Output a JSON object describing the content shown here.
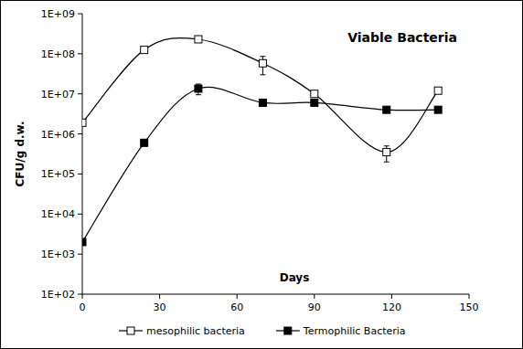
{
  "chart_data": {
    "type": "line",
    "title": "Viable Bacteria",
    "x_label": "Days",
    "y_label": "CFU/g d.w.",
    "log": "y",
    "grid": false,
    "legend": "bottom",
    "xlim": [
      0,
      150
    ],
    "xticks": [
      0,
      30,
      60,
      90,
      120,
      150
    ],
    "ylim": [
      100,
      1000000000
    ],
    "yticks": [
      {
        "value": 100,
        "label": "1E+02"
      },
      {
        "value": 1000,
        "label": "1E+03"
      },
      {
        "value": 10000,
        "label": "1E+04"
      },
      {
        "value": 100000,
        "label": "1E+05"
      },
      {
        "value": 1000000,
        "label": "1E+06"
      },
      {
        "value": 10000000,
        "label": "1E+07"
      },
      {
        "value": 100000000,
        "label": "1E+08"
      },
      {
        "value": 1000000000,
        "label": "1E+09"
      }
    ],
    "series": [
      {
        "name": "mesophilic bacteria",
        "color": "#000000",
        "marker": "square-open",
        "line_style": "solid",
        "x": [
          0,
          24,
          45,
          70,
          90,
          118,
          138
        ],
        "values": [
          1900000,
          125000000,
          230000000,
          58000000,
          10000000,
          350000,
          12000000
        ],
        "errors": [
          null,
          null,
          null,
          28000000,
          null,
          150000,
          null
        ]
      },
      {
        "name": "Termophilic Bacteria",
        "color": "#000000",
        "marker": "square",
        "line_style": "solid",
        "x": [
          0,
          24,
          45,
          70,
          90,
          118,
          138
        ],
        "values": [
          2000,
          600000,
          13500000,
          6000000,
          6000000,
          4000000,
          4000000
        ],
        "errors": [
          null,
          null,
          4000000,
          null,
          null,
          null,
          null
        ]
      }
    ]
  }
}
